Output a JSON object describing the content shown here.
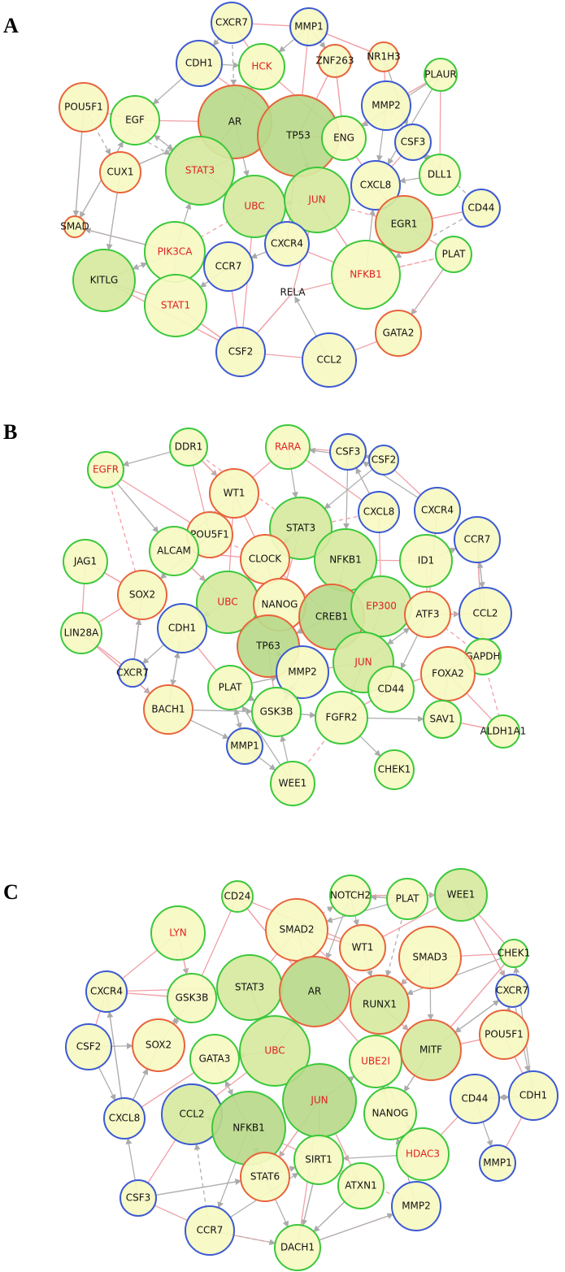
{
  "panels": [
    {
      "label": "A",
      "nodes": [
        "CXCR7",
        "MMP1",
        "CDH1",
        "HCK",
        "ZNF263",
        "NR1H3",
        "PLAUR",
        "POU5F1",
        "EGF",
        "AR",
        "TP53",
        "ENG",
        "MMP2",
        "CSF3",
        "DLL1",
        "CUX1",
        "STAT3",
        "UBC",
        "JUN",
        "CXCL8",
        "CD44",
        "SMAD",
        "EGR1",
        "CXCR4",
        "PIK3CA",
        "KITLG",
        "CCR7",
        "PLAT",
        "NFKB1",
        "RELA",
        "STAT1",
        "GATA2",
        "CSF2",
        "CCL2"
      ]
    },
    {
      "label": "B",
      "nodes": [
        "DDR1",
        "RARA",
        "CSF3",
        "CSF2",
        "EGFR",
        "WT1",
        "CXCL8",
        "CXCR4",
        "POU5F1",
        "STAT3",
        "CCR7",
        "ALCAM",
        "JAG1",
        "CLOCK",
        "NFKB1",
        "ID1",
        "SOX2",
        "UBC",
        "NANOG",
        "CREB1",
        "EP300",
        "ATF3",
        "CCL2",
        "LIN28A",
        "CDH1",
        "TP63",
        "JUN",
        "GAPDH",
        "CXCR7",
        "MMP2",
        "PLAT",
        "CD44",
        "FOXA2",
        "BACH1",
        "GSK3B",
        "FGFR2",
        "SAV1",
        "ALDH1A1",
        "MMP1",
        "CHEK1",
        "WEE1"
      ]
    },
    {
      "label": "C",
      "nodes": [
        "CD24",
        "NOTCH2",
        "PLAT",
        "WEE1",
        "LYN",
        "SMAD2",
        "WT1",
        "SMAD3",
        "CHEK1",
        "CXCR4",
        "GSK3B",
        "STAT3",
        "AR",
        "RUNX1",
        "CXCR7",
        "POU5F1",
        "UBC",
        "CSF2",
        "SOX2",
        "GATA3",
        "UBE2I",
        "MITF",
        "JUN",
        "CDH1",
        "CD44",
        "NANOG",
        "CXCL8",
        "CCL2",
        "NFKB1",
        "SIRT1",
        "HDAC3",
        "MMP1",
        "STAT6",
        "ATXN1",
        "MMP2",
        "CSF3",
        "CCR7",
        "DACH1"
      ]
    }
  ]
}
